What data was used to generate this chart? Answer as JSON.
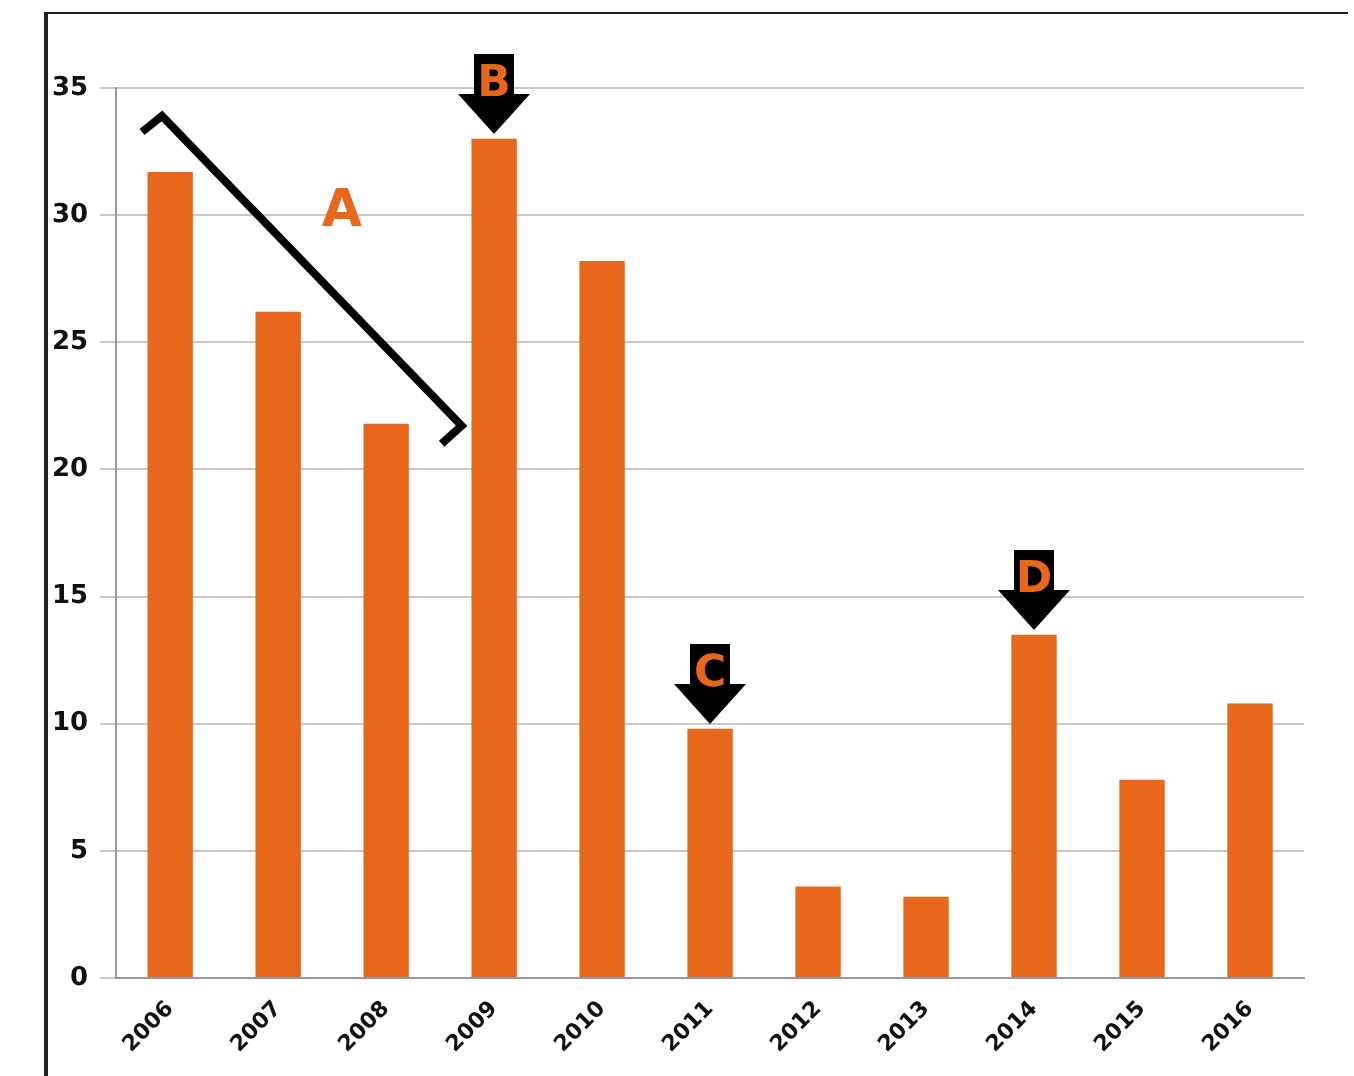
{
  "chart_data": {
    "type": "bar",
    "categories": [
      "2006",
      "2007",
      "2008",
      "2009",
      "2010",
      "2011",
      "2012",
      "2013",
      "2014",
      "2015",
      "2016"
    ],
    "values": [
      31.7,
      26.2,
      21.8,
      33.0,
      28.2,
      9.8,
      3.6,
      3.2,
      13.5,
      7.8,
      10.8
    ],
    "color": "#e8671c",
    "ylim": [
      0,
      35
    ],
    "yticks": [
      0,
      5,
      10,
      15,
      20,
      25,
      30,
      35
    ],
    "grid": "y",
    "legend": false,
    "annotations": [
      "A",
      {
        "text": "B",
        "x": "2009",
        "y": 33.0
      },
      {
        "text": "C",
        "x": "2011",
        "y": 9.8
      },
      {
        "text": "D",
        "x": "2014",
        "y": 13.5
      }
    ]
  }
}
